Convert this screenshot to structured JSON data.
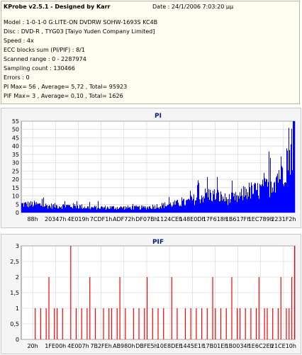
{
  "header": {
    "title": "KProbe v2.5.1 - Designed by Karr",
    "date": "Date : 24/1/2006 7:03:20 μμ"
  },
  "info_lines": [
    "Model : 1-0-1-0 G:LITE-ON DVDRW SOHW-1693S KC4B",
    "Disc : DVD-R , TYG03 [Taiyo Yuden Company Limited]",
    "Speed : 4x",
    "ECC blocks sum (PI/PIF) : 8/1",
    "Scanned range : 0 - 2287974",
    "Sampling count : 130466",
    "Errors : 0",
    "PI Max= 56 , Average= 5,72 , Total= 95923",
    "PIF Max= 3 , Average= 0,10 , Total= 1626"
  ],
  "colors": {
    "pi": "#0000ff",
    "pif": "#ff0000",
    "title": "#0b1b7d"
  },
  "chart_data": [
    {
      "type": "area",
      "title": "PI",
      "ylim": [
        0,
        55
      ],
      "yticks": [
        0,
        5,
        10,
        15,
        20,
        25,
        30,
        35,
        40,
        45,
        50,
        55
      ],
      "xtick_labels": [
        "88h",
        "20347h",
        "4E019h",
        "7CDF1h",
        "ADF72h",
        "DF07Bh",
        "1124CEh",
        "148E0Dh",
        "17F618h",
        "1B617Fh",
        "1EC789h",
        "2231F2h"
      ],
      "grid": true,
      "profile": [
        [
          0,
          5
        ],
        [
          0.05,
          5
        ],
        [
          0.1,
          4
        ],
        [
          0.15,
          4
        ],
        [
          0.2,
          4
        ],
        [
          0.25,
          3
        ],
        [
          0.3,
          3
        ],
        [
          0.35,
          3
        ],
        [
          0.4,
          3
        ],
        [
          0.45,
          3
        ],
        [
          0.5,
          4
        ],
        [
          0.55,
          5
        ],
        [
          0.6,
          6
        ],
        [
          0.65,
          9
        ],
        [
          0.68,
          11
        ],
        [
          0.72,
          10
        ],
        [
          0.75,
          8
        ],
        [
          0.8,
          9
        ],
        [
          0.82,
          13
        ],
        [
          0.86,
          13
        ],
        [
          0.9,
          15
        ],
        [
          0.93,
          21
        ],
        [
          0.96,
          27
        ],
        [
          0.98,
          38
        ],
        [
          1.0,
          46
        ]
      ],
      "peak": 56
    },
    {
      "type": "bar",
      "title": "PIF",
      "ylim": [
        0,
        3
      ],
      "yticks": [
        0,
        0.5,
        1,
        1.5,
        2,
        2.5,
        3
      ],
      "ytick_labels": [
        "0",
        "0,5",
        "1",
        "1,5",
        "2",
        "2,5",
        "3"
      ],
      "xtick_labels": [
        "20h",
        "1FE00h",
        "4E007h",
        "7B2FEh",
        "AB980h",
        "DBFE5h",
        "10E8DEh",
        "1445E1h",
        "17B01Eh",
        "1B0034h",
        "1E6C2Eh",
        "21CE10h"
      ],
      "grid": true,
      "spikes": [
        [
          0.05,
          1
        ],
        [
          0.07,
          1
        ],
        [
          0.09,
          1
        ],
        [
          0.1,
          2
        ],
        [
          0.12,
          1
        ],
        [
          0.13,
          1
        ],
        [
          0.15,
          1
        ],
        [
          0.18,
          3
        ],
        [
          0.2,
          1
        ],
        [
          0.22,
          1
        ],
        [
          0.24,
          1
        ],
        [
          0.25,
          2
        ],
        [
          0.27,
          1
        ],
        [
          0.3,
          1
        ],
        [
          0.32,
          1
        ],
        [
          0.33,
          1
        ],
        [
          0.35,
          1
        ],
        [
          0.36,
          2
        ],
        [
          0.38,
          1
        ],
        [
          0.41,
          1
        ],
        [
          0.43,
          1
        ],
        [
          0.45,
          1
        ],
        [
          0.46,
          2
        ],
        [
          0.48,
          1
        ],
        [
          0.5,
          1
        ],
        [
          0.52,
          1
        ],
        [
          0.55,
          2
        ],
        [
          0.57,
          1
        ],
        [
          0.6,
          1
        ],
        [
          0.62,
          1
        ],
        [
          0.64,
          1
        ],
        [
          0.66,
          1
        ],
        [
          0.68,
          1
        ],
        [
          0.7,
          2
        ],
        [
          0.71,
          1
        ],
        [
          0.73,
          1
        ],
        [
          0.75,
          1
        ],
        [
          0.77,
          2
        ],
        [
          0.79,
          1
        ],
        [
          0.8,
          1
        ],
        [
          0.82,
          1
        ],
        [
          0.84,
          1
        ],
        [
          0.86,
          1
        ],
        [
          0.87,
          2
        ],
        [
          0.89,
          1
        ],
        [
          0.9,
          1
        ],
        [
          0.92,
          1
        ],
        [
          0.94,
          1
        ],
        [
          0.95,
          2
        ],
        [
          0.97,
          1
        ],
        [
          0.98,
          1
        ],
        [
          0.99,
          2
        ],
        [
          1.0,
          3
        ]
      ]
    }
  ]
}
